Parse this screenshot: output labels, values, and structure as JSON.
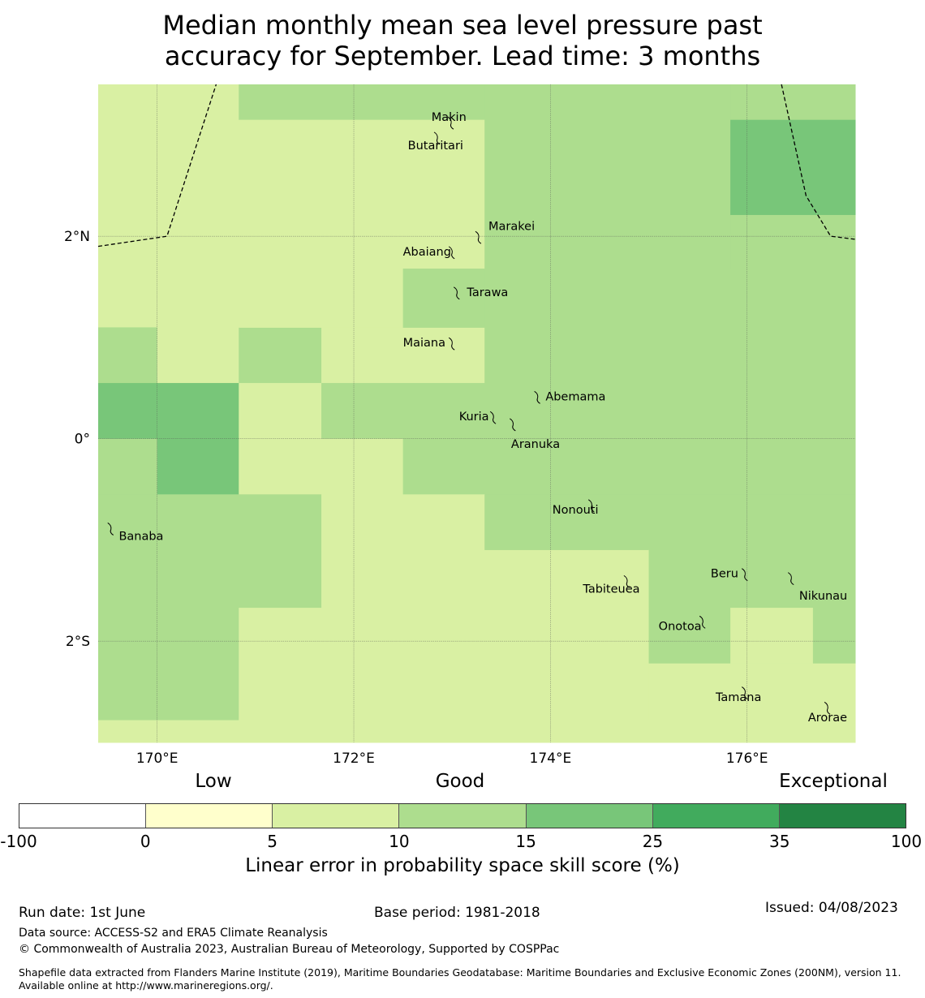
{
  "title": {
    "line1": "Median monthly mean sea level pressure past",
    "line2": "accuracy for September. Lead time: 3 months"
  },
  "map": {
    "lon_range": [
      169.4,
      177.1
    ],
    "lat_range": [
      -3.0,
      3.5
    ],
    "x_ticks": [
      {
        "lon": 170,
        "label": "170°E"
      },
      {
        "lon": 172,
        "label": "172°E"
      },
      {
        "lon": 174,
        "label": "174°E"
      },
      {
        "lon": 176,
        "label": "176°E"
      }
    ],
    "y_ticks": [
      {
        "lat": 2,
        "label": "2°N"
      },
      {
        "lat": 0,
        "label": "0°"
      },
      {
        "lat": -2,
        "label": "2°S"
      }
    ],
    "cell_colors": {
      "a": "#d9f0a3",
      "b": "#addd8e",
      "c": "#78c679"
    },
    "grid_cells": [
      {
        "lon0": 169.4,
        "lon1": 170.83,
        "lat0": 2.85,
        "lat1": 3.5,
        "c": "a"
      },
      {
        "lon0": 170.83,
        "lon1": 173.33,
        "lat0": 3.15,
        "lat1": 3.5,
        "c": "b"
      },
      {
        "lon0": 170.83,
        "lon1": 173.33,
        "lat0": 1.68,
        "lat1": 3.15,
        "c": "a"
      },
      {
        "lon0": 173.33,
        "lon1": 175.83,
        "lat0": 1.68,
        "lat1": 3.5,
        "c": "b"
      },
      {
        "lon0": 175.83,
        "lon1": 177.1,
        "lat0": 3.15,
        "lat1": 3.5,
        "c": "b"
      },
      {
        "lon0": 175.83,
        "lon1": 177.1,
        "lat0": 2.21,
        "lat1": 3.15,
        "c": "c"
      },
      {
        "lon0": 175.83,
        "lon1": 177.1,
        "lat0": 1.68,
        "lat1": 2.21,
        "c": "b"
      },
      {
        "lon0": 169.4,
        "lon1": 170.83,
        "lat0": 1.1,
        "lat1": 2.85,
        "c": "a"
      },
      {
        "lon0": 169.4,
        "lon1": 170.0,
        "lat0": 0.55,
        "lat1": 1.1,
        "c": "b"
      },
      {
        "lon0": 170.0,
        "lon1": 170.83,
        "lat0": 0.55,
        "lat1": 1.1,
        "c": "a"
      },
      {
        "lon0": 170.83,
        "lon1": 171.67,
        "lat0": 0.55,
        "lat1": 1.1,
        "c": "b"
      },
      {
        "lon0": 171.67,
        "lon1": 173.33,
        "lat0": 0.55,
        "lat1": 1.68,
        "c": "a"
      },
      {
        "lon0": 170.83,
        "lon1": 172.5,
        "lat0": 1.1,
        "lat1": 1.68,
        "c": "a"
      },
      {
        "lon0": 172.5,
        "lon1": 173.33,
        "lat0": 1.1,
        "lat1": 1.68,
        "c": "b"
      },
      {
        "lon0": 173.33,
        "lon1": 177.1,
        "lat0": 0.0,
        "lat1": 1.68,
        "c": "b"
      },
      {
        "lon0": 169.4,
        "lon1": 170.83,
        "lat0": 0.0,
        "lat1": 0.55,
        "c": "c"
      },
      {
        "lon0": 170.83,
        "lon1": 171.67,
        "lat0": 0.0,
        "lat1": 0.55,
        "c": "a"
      },
      {
        "lon0": 171.67,
        "lon1": 173.33,
        "lat0": 0.0,
        "lat1": 0.55,
        "c": "b"
      },
      {
        "lon0": 169.4,
        "lon1": 170.0,
        "lat0": -0.55,
        "lat1": 0.0,
        "c": "b"
      },
      {
        "lon0": 170.0,
        "lon1": 170.83,
        "lat0": -0.55,
        "lat1": 0.0,
        "c": "c"
      },
      {
        "lon0": 170.83,
        "lon1": 172.5,
        "lat0": -0.55,
        "lat1": 0.0,
        "c": "a"
      },
      {
        "lon0": 172.5,
        "lon1": 177.1,
        "lat0": -0.55,
        "lat1": 0.0,
        "c": "b"
      },
      {
        "lon0": 169.4,
        "lon1": 171.67,
        "lat0": -1.67,
        "lat1": -0.55,
        "c": "b"
      },
      {
        "lon0": 171.67,
        "lon1": 173.33,
        "lat0": -1.1,
        "lat1": -0.55,
        "c": "a"
      },
      {
        "lon0": 173.33,
        "lon1": 177.1,
        "lat0": -1.1,
        "lat1": -0.55,
        "c": "b"
      },
      {
        "lon0": 171.67,
        "lon1": 175.0,
        "lat0": -1.67,
        "lat1": -1.1,
        "c": "a"
      },
      {
        "lon0": 175.0,
        "lon1": 177.1,
        "lat0": -1.67,
        "lat1": -1.1,
        "c": "b"
      },
      {
        "lon0": 169.4,
        "lon1": 170.83,
        "lat0": -2.78,
        "lat1": -1.67,
        "c": "b"
      },
      {
        "lon0": 170.83,
        "lon1": 175.0,
        "lat0": -2.78,
        "lat1": -1.67,
        "c": "a"
      },
      {
        "lon0": 175.0,
        "lon1": 175.83,
        "lat0": -2.22,
        "lat1": -1.67,
        "c": "b"
      },
      {
        "lon0": 175.83,
        "lon1": 176.67,
        "lat0": -2.22,
        "lat1": -1.67,
        "c": "a"
      },
      {
        "lon0": 176.67,
        "lon1": 177.1,
        "lat0": -2.22,
        "lat1": -1.67,
        "c": "b"
      },
      {
        "lon0": 175.0,
        "lon1": 177.1,
        "lat0": -2.78,
        "lat1": -2.22,
        "c": "a"
      },
      {
        "lon0": 169.4,
        "lon1": 177.1,
        "lat0": -3.0,
        "lat1": -2.78,
        "c": "a"
      }
    ],
    "boundary_west": [
      [
        169.4,
        1.9
      ],
      [
        170.1,
        2.0
      ],
      [
        170.6,
        3.5
      ]
    ],
    "boundary_east": [
      [
        176.35,
        3.5
      ],
      [
        176.6,
        2.4
      ],
      [
        176.85,
        2.0
      ],
      [
        177.1,
        1.97
      ]
    ],
    "islands": [
      {
        "name": "Makin",
        "lon": 172.99,
        "lat": 3.13,
        "dlon": -0.2,
        "dlat": 0.05
      },
      {
        "name": "Butaritari",
        "lon": 172.85,
        "lat": 2.98,
        "dlon": -0.3,
        "dlat": -0.08
      },
      {
        "name": "Marakei",
        "lon": 173.27,
        "lat": 2.0,
        "dlon": 0.1,
        "dlat": 0.1
      },
      {
        "name": "Abaiang",
        "lon": 173.0,
        "lat": 1.85,
        "dlon": -0.5,
        "dlat": 0.0
      },
      {
        "name": "Tarawa",
        "lon": 173.05,
        "lat": 1.45,
        "dlon": 0.1,
        "dlat": 0.0
      },
      {
        "name": "Maiana",
        "lon": 173.0,
        "lat": 0.95,
        "dlon": -0.5,
        "dlat": 0.0
      },
      {
        "name": "Abemama",
        "lon": 173.87,
        "lat": 0.42,
        "dlon": 0.08,
        "dlat": 0.0
      },
      {
        "name": "Kuria",
        "lon": 173.42,
        "lat": 0.22,
        "dlon": -0.35,
        "dlat": 0.0
      },
      {
        "name": "Aranuka",
        "lon": 173.62,
        "lat": 0.15,
        "dlon": -0.02,
        "dlat": -0.2
      },
      {
        "name": "Nonouti",
        "lon": 174.42,
        "lat": -0.65,
        "dlon": -0.4,
        "dlat": -0.05
      },
      {
        "name": "Banaba",
        "lon": 169.53,
        "lat": -0.88,
        "dlon": 0.08,
        "dlat": -0.08
      },
      {
        "name": "Tabiteuea",
        "lon": 174.78,
        "lat": -1.4,
        "dlon": -0.45,
        "dlat": -0.08
      },
      {
        "name": "Beru",
        "lon": 175.98,
        "lat": -1.33,
        "dlon": -0.35,
        "dlat": 0.0
      },
      {
        "name": "Nikunau",
        "lon": 176.45,
        "lat": -1.37,
        "dlon": 0.08,
        "dlat": -0.18
      },
      {
        "name": "Onotoa",
        "lon": 175.55,
        "lat": -1.8,
        "dlon": -0.45,
        "dlat": -0.05
      },
      {
        "name": "Tamana",
        "lon": 175.98,
        "lat": -2.5,
        "dlon": -0.3,
        "dlat": -0.05
      },
      {
        "name": "Arorae",
        "lon": 176.82,
        "lat": -2.65,
        "dlon": -0.2,
        "dlat": -0.1
      }
    ]
  },
  "colorbar": {
    "category_labels": {
      "low": "Low",
      "good": "Good",
      "exceptional": "Exceptional"
    },
    "segments": [
      {
        "from": "-100",
        "to": "0",
        "color": "#ffffff"
      },
      {
        "from": "0",
        "to": "5",
        "color": "#ffffcc"
      },
      {
        "from": "5",
        "to": "10",
        "color": "#d9f0a3"
      },
      {
        "from": "10",
        "to": "15",
        "color": "#addd8e"
      },
      {
        "from": "15",
        "to": "25",
        "color": "#78c679"
      },
      {
        "from": "25",
        "to": "35",
        "color": "#41ab5d"
      },
      {
        "from": "35",
        "to": "100",
        "color": "#238443"
      }
    ],
    "ticks": [
      "-100",
      "0",
      "5",
      "10",
      "15",
      "25",
      "35",
      "100"
    ],
    "title": "Linear error in probability space skill score (%)"
  },
  "footer": {
    "run_date": "Run date: 1st June",
    "base_period": "Base period: 1981-2018",
    "issued": "Issued: 04/08/2023",
    "data_source": "Data source: ACCESS-S2 and ERA5 Climate Reanalysis",
    "copyright": "© Commonwealth of Australia 2023, Australian Bureau of Meteorology, Supported by COSPPac",
    "shapefile": "Shapefile data extracted from Flanders Marine Institute (2019), Maritime Boundaries Geodatabase: Maritime Boundaries and Exclusive Economic Zones (200NM), version 11. Available online at http://www.marineregions.org/."
  }
}
